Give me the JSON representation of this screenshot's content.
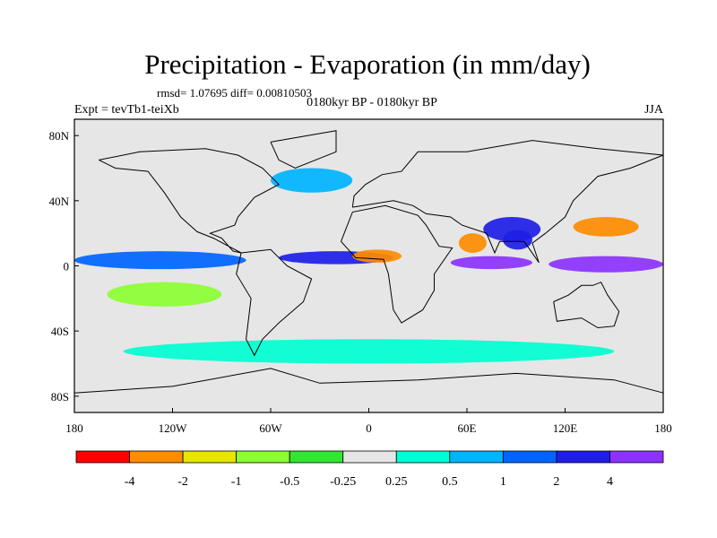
{
  "chart_data": {
    "type": "heatmap",
    "title": "Precipitation - Evaporation (in mm/day)",
    "stats": "rmsd= 1.07695 diff= 0.00810503",
    "experiment": "Expt = tevTb1-teiXb",
    "period": "0180kyr BP - 0180kyr BP",
    "season": "JJA",
    "x_ticks": [
      "180",
      "120W",
      "60W",
      "0",
      "60E",
      "120E",
      "180"
    ],
    "x_tick_lon": [
      -180,
      -120,
      -60,
      0,
      60,
      120,
      180
    ],
    "y_ticks": [
      "80N",
      "40N",
      "0",
      "40S",
      "80S"
    ],
    "y_tick_lat": [
      80,
      40,
      0,
      -40,
      -80
    ],
    "xlim": [
      -180,
      180
    ],
    "ylim": [
      -90,
      90
    ],
    "colorbar": {
      "levels": [
        "-4",
        "-2",
        "-1",
        "-0.5",
        "-0.25",
        "0.25",
        "0.5",
        "1",
        "2",
        "4"
      ],
      "colors": [
        "#ff0000",
        "#ff8c00",
        "#e6e600",
        "#8cff32",
        "#32e632",
        "#e6e6e6",
        "#00ffd2",
        "#00b4ff",
        "#0064ff",
        "#1e1ee6",
        "#8c32ff"
      ]
    },
    "background_class_color": "#e6e6e6",
    "regions": [
      {
        "name": "equatorial-pacific-band",
        "value_class": 8,
        "lon": [
          -180,
          -75
        ],
        "lat": [
          -2,
          9
        ]
      },
      {
        "name": "equatorial-atlantic-band",
        "value_class": 9,
        "lon": [
          -55,
          15
        ],
        "lat": [
          1,
          9
        ]
      },
      {
        "name": "west-pacific-warm-pool",
        "value_class": 10,
        "lon": [
          110,
          180
        ],
        "lat": [
          -4,
          6
        ]
      },
      {
        "name": "indian-ocean-equatorial",
        "value_class": 10,
        "lon": [
          50,
          100
        ],
        "lat": [
          -2,
          6
        ]
      },
      {
        "name": "bay-of-bengal",
        "value_class": 9,
        "lon": [
          82,
          100
        ],
        "lat": [
          10,
          22
        ]
      },
      {
        "name": "south-asian-monsoon",
        "value_class": 9,
        "lon": [
          70,
          105
        ],
        "lat": [
          15,
          30
        ]
      },
      {
        "name": "west-africa-sahel",
        "value_class": 1,
        "lon": [
          -10,
          20
        ],
        "lat": [
          2,
          10
        ]
      },
      {
        "name": "northwest-pacific-dry",
        "value_class": 1,
        "lon": [
          125,
          165
        ],
        "lat": [
          18,
          30
        ]
      },
      {
        "name": "arabian-sea-dry",
        "value_class": 1,
        "lon": [
          55,
          72
        ],
        "lat": [
          8,
          20
        ]
      },
      {
        "name": "south-pacific-dry-belt",
        "value_class": 3,
        "lon": [
          -160,
          -90
        ],
        "lat": [
          -25,
          -10
        ]
      },
      {
        "name": "north-atlantic-storm",
        "value_class": 7,
        "lon": [
          -60,
          -10
        ],
        "lat": [
          45,
          60
        ]
      },
      {
        "name": "southern-ocean-moist",
        "value_class": 6,
        "lon": [
          -150,
          150
        ],
        "lat": [
          -60,
          -45
        ]
      }
    ]
  }
}
